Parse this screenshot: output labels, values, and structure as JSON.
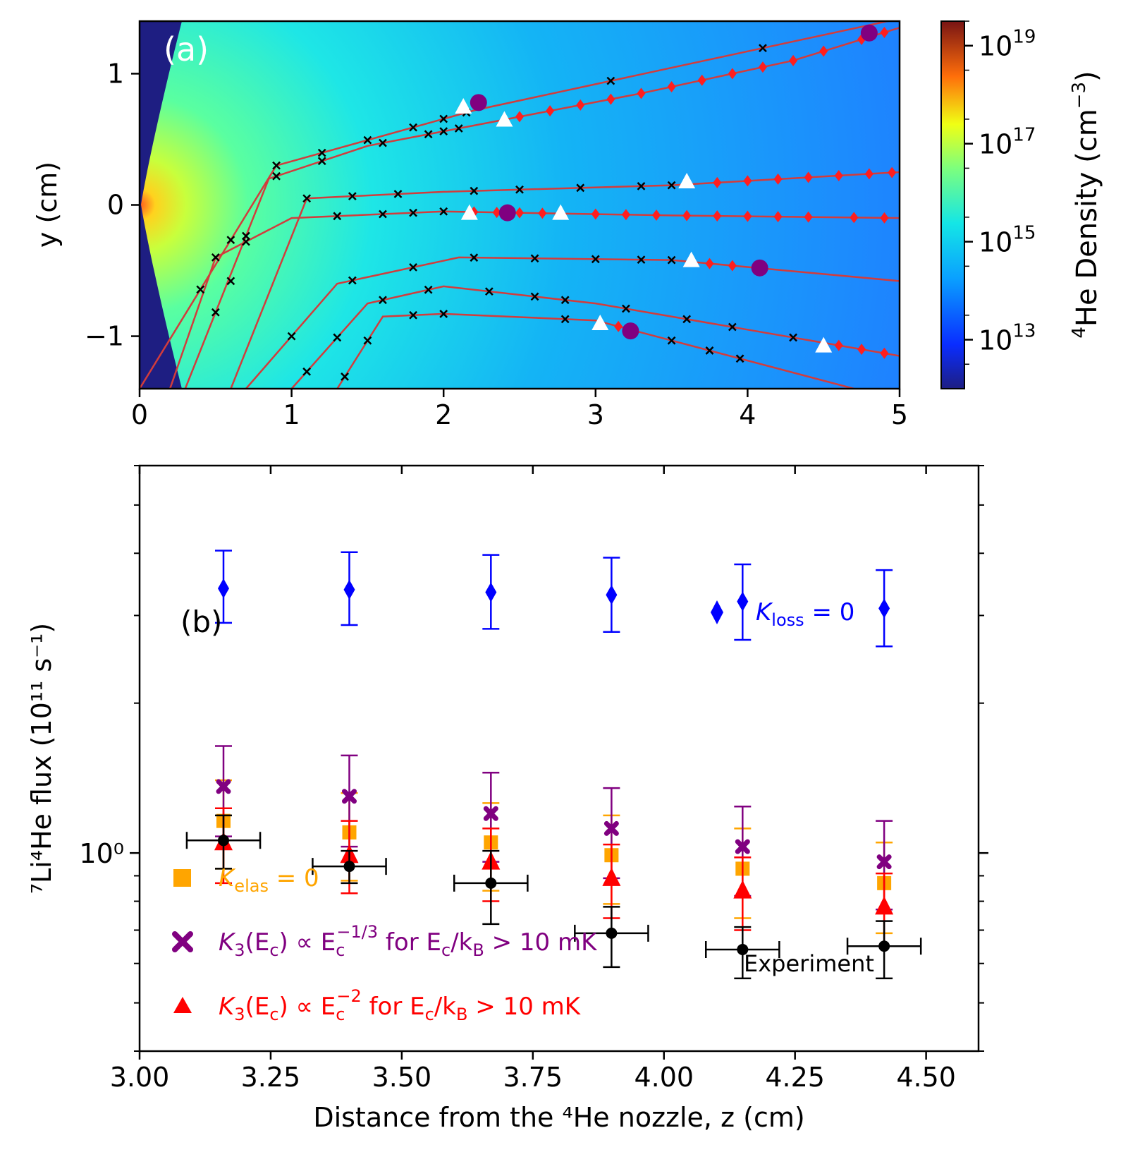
{
  "chart_data": [
    {
      "panel": "a",
      "type": "heatmap",
      "label": "(a)",
      "xlabel": "",
      "ylabel": "y (cm)",
      "xlim": [
        0,
        5
      ],
      "ylim": [
        -1.4,
        1.4
      ],
      "x_ticks": [
        "0",
        "1",
        "2",
        "3",
        "4",
        "5"
      ],
      "y_ticks": [
        "−1",
        "0",
        "1"
      ],
      "colorbar": {
        "label_sup": "4",
        "label_main": "He Density (cm",
        "label_exp": "−3",
        "label_close": ")",
        "scale": "log",
        "range_exp": [
          12,
          19.5
        ],
        "ticks": [
          {
            "base": "10",
            "exp": "13"
          },
          {
            "base": "10",
            "exp": "15"
          },
          {
            "base": "10",
            "exp": "17"
          },
          {
            "base": "10",
            "exp": "19"
          }
        ]
      },
      "trajectories": [
        {
          "points": [
            [
              0,
              -1.4
            ],
            [
              0.9,
              0.3
            ],
            [
              2.2,
              0.72
            ],
            [
              5,
              1.42
            ]
          ],
          "crosses_x": [
            0.4,
            0.6,
            0.9,
            1.2,
            1.5,
            1.8,
            2.0,
            2.15,
            3.1,
            4.1
          ],
          "diamonds_x": []
        },
        {
          "points": [
            [
              0.3,
              -1.4
            ],
            [
              0.85,
              0.2
            ],
            [
              1.5,
              0.45
            ],
            [
              2.4,
              0.65
            ],
            [
              3.3,
              0.85
            ],
            [
              4.3,
              1.1
            ],
            [
              5,
              1.35
            ]
          ],
          "crosses_x": [
            0.5,
            0.7,
            0.9,
            1.2,
            1.6,
            1.9,
            2.0,
            2.1
          ],
          "diamonds_x": [
            2.5,
            2.7,
            2.9,
            3.1,
            3.3,
            3.5,
            3.7,
            3.9,
            4.1,
            4.3,
            4.5,
            4.75,
            4.9
          ]
        },
        {
          "points": [
            [
              0.6,
              -1.4
            ],
            [
              1.1,
              0.05
            ],
            [
              2.0,
              0.1
            ],
            [
              3.5,
              0.15
            ],
            [
              5,
              0.25
            ]
          ],
          "crosses_x": [
            1.1,
            1.4,
            1.7,
            2.2,
            2.5,
            2.9,
            3.3,
            3.5
          ],
          "diamonds_x": [
            3.8,
            4.0,
            4.2,
            4.4,
            4.6,
            4.8,
            4.95
          ]
        },
        {
          "points": [
            [
              0.2,
              -1.4
            ],
            [
              0.5,
              -0.4
            ],
            [
              1.0,
              -0.1
            ],
            [
              2.0,
              -0.05
            ],
            [
              3.5,
              -0.08
            ],
            [
              5,
              -0.1
            ]
          ],
          "crosses_x": [
            0.5,
            0.7,
            1.3,
            1.6,
            1.8,
            2.0
          ],
          "diamonds_x": [
            2.2,
            2.35,
            2.5,
            2.65,
            3.0,
            3.2,
            3.4,
            3.6,
            3.8,
            4.0,
            4.2,
            4.4,
            4.7,
            4.9
          ]
        },
        {
          "points": [
            [
              0.7,
              -1.4
            ],
            [
              1.3,
              -0.6
            ],
            [
              2.1,
              -0.4
            ],
            [
              3.5,
              -0.42
            ],
            [
              5,
              -0.58
            ]
          ],
          "crosses_x": [
            0.6,
            1.0,
            1.4,
            1.8,
            2.2,
            2.6,
            3.0,
            3.3,
            3.5
          ],
          "diamonds_x": [
            3.75,
            3.9,
            4.05,
            4.1
          ]
        },
        {
          "points": [
            [
              1.0,
              -1.4
            ],
            [
              1.5,
              -0.75
            ],
            [
              2.0,
              -0.62
            ],
            [
              3.0,
              -0.75
            ],
            [
              4.0,
              -0.95
            ],
            [
              5,
              -1.15
            ]
          ],
          "crosses_x": [
            1.1,
            1.3,
            1.6,
            1.9,
            2.3,
            2.6,
            2.8,
            3.2,
            3.6,
            3.9,
            4.3
          ],
          "diamonds_x": [
            4.6,
            4.75,
            4.9
          ]
        },
        {
          "points": [
            [
              1.3,
              -1.4
            ],
            [
              1.6,
              -0.85
            ],
            [
              2.0,
              -0.83
            ],
            [
              3.0,
              -0.88
            ],
            [
              4.7,
              -1.4
            ]
          ],
          "crosses_x": [
            1.35,
            1.5,
            1.8,
            2.0,
            2.8,
            3.5,
            3.75,
            3.95
          ],
          "diamonds_x": [
            3.15
          ]
        }
      ],
      "white_triangles": [
        [
          2.13,
          0.75
        ],
        [
          2.4,
          0.65
        ],
        [
          2.17,
          -0.06
        ],
        [
          2.77,
          -0.06
        ],
        [
          3.6,
          0.18
        ],
        [
          3.63,
          -0.42
        ],
        [
          3.03,
          -0.9
        ],
        [
          4.5,
          -1.07
        ]
      ],
      "purple_circles": [
        [
          2.23,
          0.78
        ],
        [
          2.42,
          -0.06
        ],
        [
          4.08,
          -0.48
        ],
        [
          3.23,
          -0.96
        ],
        [
          4.8,
          1.31
        ]
      ]
    },
    {
      "panel": "b",
      "type": "scatter",
      "label": "(b)",
      "xlabel": "Distance from the ⁴He nozzle, z (cm)",
      "ylabel": "⁷Li⁴He flux (10¹¹ s⁻¹)",
      "xlim": [
        3.0,
        4.6
      ],
      "ylim": [
        0.4,
        6.0
      ],
      "yscale": "log",
      "x_ticks": [
        "3.00",
        "3.25",
        "3.50",
        "3.75",
        "4.00",
        "4.25",
        "4.50"
      ],
      "y_tick_label": "10⁰",
      "series": [
        {
          "name": "K_loss = 0",
          "color": "#0000ff",
          "marker": "diamond",
          "x": [
            3.16,
            3.4,
            3.67,
            3.9,
            4.15,
            4.42
          ],
          "y": [
            3.4,
            3.38,
            3.34,
            3.3,
            3.2,
            3.1
          ],
          "y_err_low": [
            2.9,
            2.87,
            2.82,
            2.78,
            2.68,
            2.6
          ],
          "y_err_high": [
            4.05,
            4.02,
            3.97,
            3.92,
            3.8,
            3.7
          ]
        },
        {
          "name": "K_elas = 0",
          "color": "#ffa500",
          "marker": "square",
          "x": [
            3.16,
            3.4,
            3.67,
            3.9,
            4.15,
            4.42
          ],
          "y": [
            1.16,
            1.1,
            1.05,
            0.99,
            0.93,
            0.87
          ],
          "y_err_low": [
            0.93,
            0.88,
            0.84,
            0.79,
            0.74,
            0.69
          ],
          "y_err_high": [
            1.4,
            1.32,
            1.26,
            1.19,
            1.12,
            1.05
          ]
        },
        {
          "name": "K3 ∝ Ec^-1/3",
          "color": "#800080",
          "marker": "x",
          "x": [
            3.16,
            3.4,
            3.67,
            3.9,
            4.15,
            4.42
          ],
          "y": [
            1.36,
            1.3,
            1.2,
            1.12,
            1.03,
            0.96
          ],
          "y_err_low": [
            1.08,
            1.03,
            0.96,
            0.89,
            0.82,
            0.77
          ],
          "y_err_high": [
            1.64,
            1.57,
            1.45,
            1.35,
            1.24,
            1.16
          ]
        },
        {
          "name": "K3 ∝ Ec^-2",
          "color": "#ff0000",
          "marker": "triangle",
          "x": [
            3.16,
            3.4,
            3.67,
            3.9,
            4.15,
            4.42
          ],
          "y": [
            1.05,
            0.99,
            0.96,
            0.89,
            0.84,
            0.78
          ],
          "y_err_low": [
            0.87,
            0.83,
            0.8,
            0.74,
            0.7,
            0.65
          ],
          "y_err_high": [
            1.23,
            1.16,
            1.12,
            1.04,
            0.98,
            0.91
          ]
        },
        {
          "name": "Experiment",
          "color": "#000000",
          "marker": "circle",
          "x": [
            3.16,
            3.4,
            3.67,
            3.9,
            4.15,
            4.42
          ],
          "y": [
            1.06,
            0.94,
            0.87,
            0.69,
            0.64,
            0.65
          ],
          "y_err_low": [
            0.93,
            0.87,
            0.72,
            0.59,
            0.56,
            0.56
          ],
          "y_err_high": [
            1.19,
            1.01,
            1.01,
            0.78,
            0.71,
            0.73
          ],
          "x_err": [
            0.07,
            0.07,
            0.07,
            0.07,
            0.07,
            0.07
          ]
        }
      ],
      "legend": {
        "kloss": {
          "sym": "K",
          "sub": "loss",
          "rest": " = 0"
        },
        "kelas": {
          "sym": "K",
          "sub": "elas",
          "rest": " = 0"
        },
        "k3a": {
          "a": "K",
          "a_sub": "3",
          "b": "(E",
          "b_sub": "c",
          "c": ") ∝ E",
          "c_sub": "c",
          "c_sup": "−1/3",
          "d": " for E",
          "d_sub": "c",
          "e": "/k",
          "e_sub": "B",
          "f": " > 10 mK"
        },
        "k3b": {
          "a": "K",
          "a_sub": "3",
          "b": "(E",
          "b_sub": "c",
          "c": ") ∝ E",
          "c_sub": "c",
          "c_sup": "−2",
          "d": " for E",
          "d_sub": "c",
          "e": "/k",
          "e_sub": "B",
          "f": " > 10 mK"
        },
        "experiment": "Experiment"
      }
    }
  ]
}
